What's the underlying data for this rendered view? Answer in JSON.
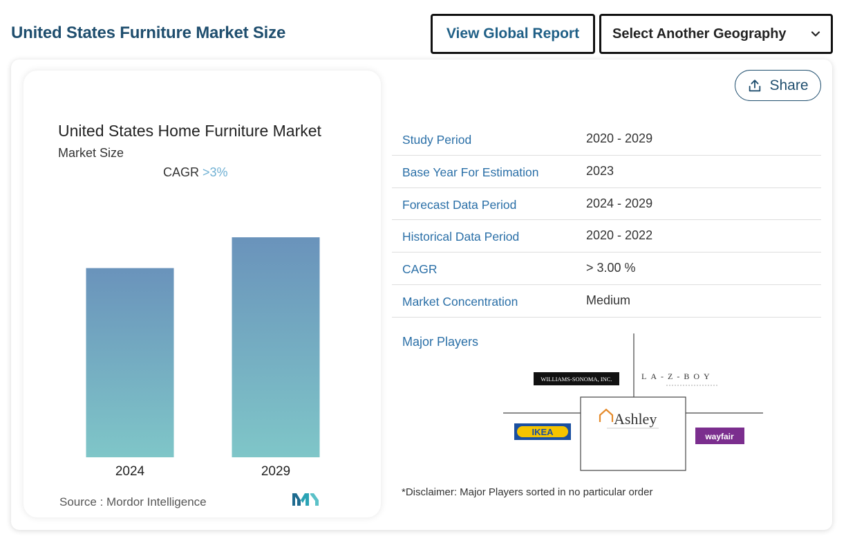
{
  "header": {
    "title": "United States Furniture Market Size",
    "global_button": "View Global Report",
    "geo_select": "Select Another Geography"
  },
  "chart": {
    "title": "United States Home Furniture Market",
    "subtitle": "Market Size",
    "cagr_label": "CAGR",
    "cagr_value": ">3%",
    "source": "Source :  Mordor Intelligence"
  },
  "chart_data": {
    "type": "bar",
    "categories": [
      "2024",
      "2029"
    ],
    "values": [
      0.86,
      1.0
    ],
    "title": "United States Home Furniture Market",
    "subtitle": "Market Size",
    "xlabel": "",
    "ylabel": "",
    "colors": {
      "top": "#6a93bb",
      "bottom": "#7fc6c8"
    }
  },
  "share": {
    "label": "Share"
  },
  "info": {
    "rows": [
      {
        "label": "Study Period",
        "value": "2020 - 2029"
      },
      {
        "label": "Base Year For Estimation",
        "value": "2023"
      },
      {
        "label": "Forecast Data Period",
        "value": "2024 - 2029"
      },
      {
        "label": "Historical Data Period",
        "value": "2020 - 2022"
      },
      {
        "label": "CAGR",
        "value": "> 3.00 %"
      },
      {
        "label": "Market Concentration",
        "value": "Medium"
      }
    ]
  },
  "players": {
    "title": "Major Players",
    "logos": [
      "WILLIAMS-SONOMA, INC.",
      "LA-Z-BOY",
      "Ashley",
      "IKEA",
      "wayfair"
    ],
    "disclaimer": "*Disclaimer: Major Players sorted in no particular order"
  }
}
